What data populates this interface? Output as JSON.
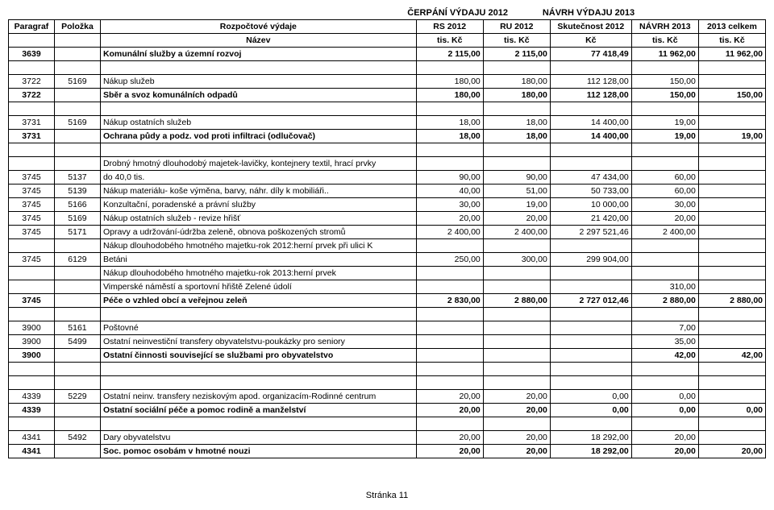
{
  "header": {
    "left": "ČERPÁNÍ VÝDAJU 2012",
    "right": "NÁVRH VÝDAJU 2013"
  },
  "columns": {
    "h1": [
      "Paragraf",
      "Položka",
      "Rozpočtové výdaje",
      "RS 2012",
      "RU 2012",
      "Skutečnost 2012",
      "NÁVRH 2013",
      "2013 celkem"
    ],
    "h2": [
      "",
      "",
      "Název",
      "tis. Kč",
      "tis. Kč",
      "Kč",
      "tis. Kč",
      "tis. Kč"
    ]
  },
  "rows": [
    {
      "bold": true,
      "cells": [
        "3639",
        "",
        "Komunální služby a územní rozvoj",
        "2 115,00",
        "2 115,00",
        "77 418,49",
        "11 962,00",
        "11 962,00"
      ]
    },
    {
      "empty": true
    },
    {
      "cells": [
        "3722",
        "5169",
        "Nákup služeb",
        "180,00",
        "180,00",
        "112 128,00",
        "150,00",
        ""
      ]
    },
    {
      "bold": true,
      "cells": [
        "3722",
        "",
        "Sběr a svoz komunálních odpadů",
        "180,00",
        "180,00",
        "112 128,00",
        "150,00",
        "150,00"
      ]
    },
    {
      "empty": true
    },
    {
      "cells": [
        "3731",
        "5169",
        "Nákup ostatních služeb",
        "18,00",
        "18,00",
        "14 400,00",
        "19,00",
        ""
      ]
    },
    {
      "bold": true,
      "cells": [
        "3731",
        "",
        "Ochrana půdy a podz. vod proti infiltraci (odlučovač)",
        "18,00",
        "18,00",
        "14 400,00",
        "19,00",
        "19,00"
      ]
    },
    {
      "empty": true
    },
    {
      "cells": [
        "",
        "",
        "Drobný hmotný dlouhodobý majetek-lavičky, kontejnery textil, hrací prvky",
        "",
        "",
        "",
        "",
        ""
      ]
    },
    {
      "cells": [
        "3745",
        "5137",
        "do 40,0 tis.",
        "90,00",
        "90,00",
        "47 434,00",
        "60,00",
        ""
      ]
    },
    {
      "cells": [
        "3745",
        "5139",
        "Nákup materiálu- koše výměna, barvy, náhr. díly k mobiliáři..",
        "40,00",
        "51,00",
        "50 733,00",
        "60,00",
        ""
      ]
    },
    {
      "cells": [
        "3745",
        "5166",
        "Konzultační, poradenské a právní služby",
        "30,00",
        "19,00",
        "10 000,00",
        "30,00",
        ""
      ]
    },
    {
      "cells": [
        "3745",
        "5169",
        "Nákup ostatních služeb - revize hřišť",
        "20,00",
        "20,00",
        "21 420,00",
        "20,00",
        ""
      ]
    },
    {
      "cells": [
        "3745",
        "5171",
        "Opravy a udržování-údržba zeleně, obnova poškozených stromů",
        "2 400,00",
        "2 400,00",
        "2 297 521,46",
        "2 400,00",
        ""
      ]
    },
    {
      "cells": [
        "",
        "",
        "Nákup dlouhodobého hmotného majetku-rok 2012:herní prvek při ulici K",
        "",
        "",
        "",
        "",
        ""
      ]
    },
    {
      "cells": [
        "3745",
        "6129",
        "Betáni",
        "250,00",
        "300,00",
        "299 904,00",
        "",
        ""
      ]
    },
    {
      "cells": [
        "",
        "",
        "Nákup dlouhodobého hmotného majetku-rok 2013:herní prvek",
        "",
        "",
        "",
        "",
        ""
      ]
    },
    {
      "cells": [
        "",
        "",
        "Vimperské náměstí a sportovní hřiště Zelené údolí",
        "",
        "",
        "",
        "310,00",
        ""
      ]
    },
    {
      "bold": true,
      "cells": [
        "3745",
        "",
        "Péče o vzhled obcí a veřejnou zeleň",
        "2 830,00",
        "2 880,00",
        "2 727 012,46",
        "2 880,00",
        "2 880,00"
      ]
    },
    {
      "empty": true
    },
    {
      "cells": [
        "3900",
        "5161",
        "Poštovné",
        "",
        "",
        "",
        "7,00",
        ""
      ]
    },
    {
      "cells": [
        "3900",
        "5499",
        "Ostatní neinvestiční transfery obyvatelstvu-poukázky pro seniory",
        "",
        "",
        "",
        "35,00",
        ""
      ]
    },
    {
      "bold": true,
      "cells": [
        "3900",
        "",
        "Ostatní činnosti související se službami pro obyvatelstvo",
        "",
        "",
        "",
        "42,00",
        "42,00"
      ]
    },
    {
      "empty": true
    },
    {
      "empty": true
    },
    {
      "cells": [
        "4339",
        "5229",
        "Ostatní neinv. transfery neziskovým apod. organizacím-Rodinné centrum",
        "20,00",
        "20,00",
        "0,00",
        "0,00",
        ""
      ]
    },
    {
      "bold": true,
      "cells": [
        "4339",
        "",
        "Ostatní sociální péče a pomoc rodině a manželství",
        "20,00",
        "20,00",
        "0,00",
        "0,00",
        "0,00"
      ]
    },
    {
      "empty": true
    },
    {
      "cells": [
        "4341",
        "5492",
        "Dary obyvatelstvu",
        "20,00",
        "20,00",
        "18 292,00",
        "20,00",
        ""
      ]
    },
    {
      "bold": true,
      "cells": [
        "4341",
        "",
        "Soc. pomoc osobám v hmotné nouzi",
        "20,00",
        "20,00",
        "18 292,00",
        "20,00",
        "20,00"
      ]
    }
  ],
  "footer": "Stránka 11"
}
